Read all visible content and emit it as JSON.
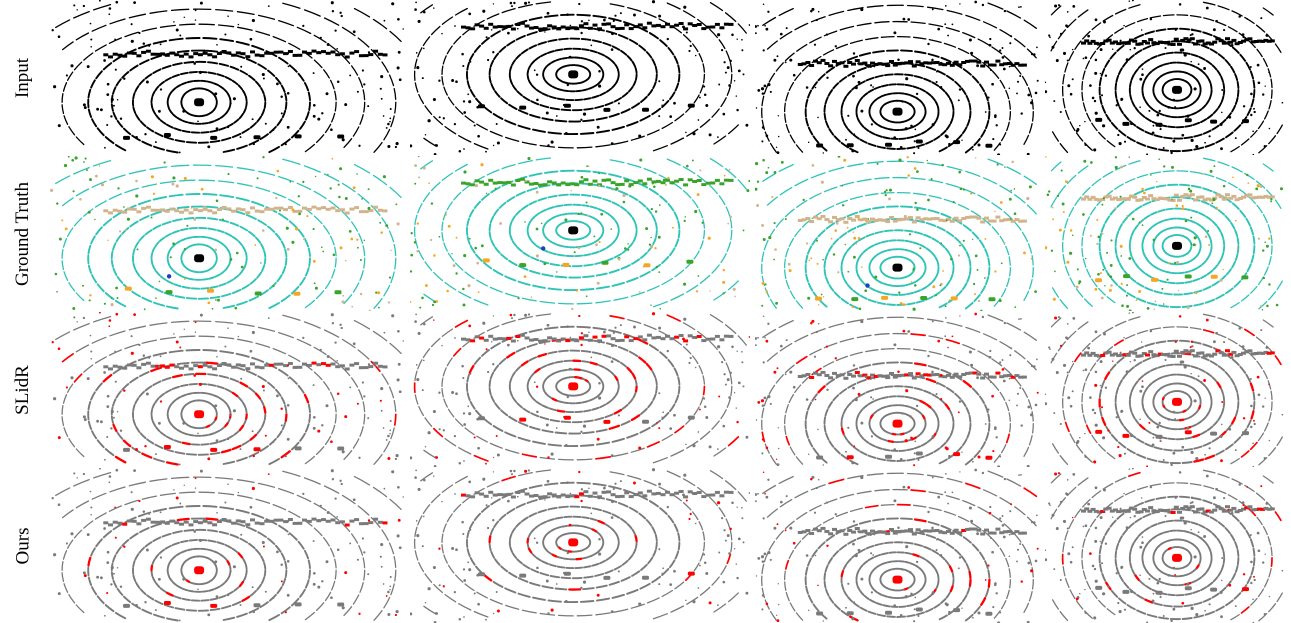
{
  "figure": {
    "rows": [
      {
        "label": "Input",
        "scheme": "input"
      },
      {
        "label": "Ground Truth",
        "scheme": "gt"
      },
      {
        "label": "SLidR",
        "scheme": "slidr"
      },
      {
        "label": "Ours",
        "scheme": "ours"
      }
    ],
    "scene_count": 4,
    "colors": {
      "input_points": "#000000",
      "prediction_points": "#7a7a7a",
      "error_points": "#ff0000",
      "gt_road": "#2ec4b6",
      "gt_sidewalk": "#5b1a6e",
      "gt_vegetation": "#3aa32a",
      "gt_building": "#d2b48c",
      "gt_vehicle": "#f5a623",
      "gt_person": "#1f3fbf",
      "gt_pole": "#000000"
    }
  }
}
